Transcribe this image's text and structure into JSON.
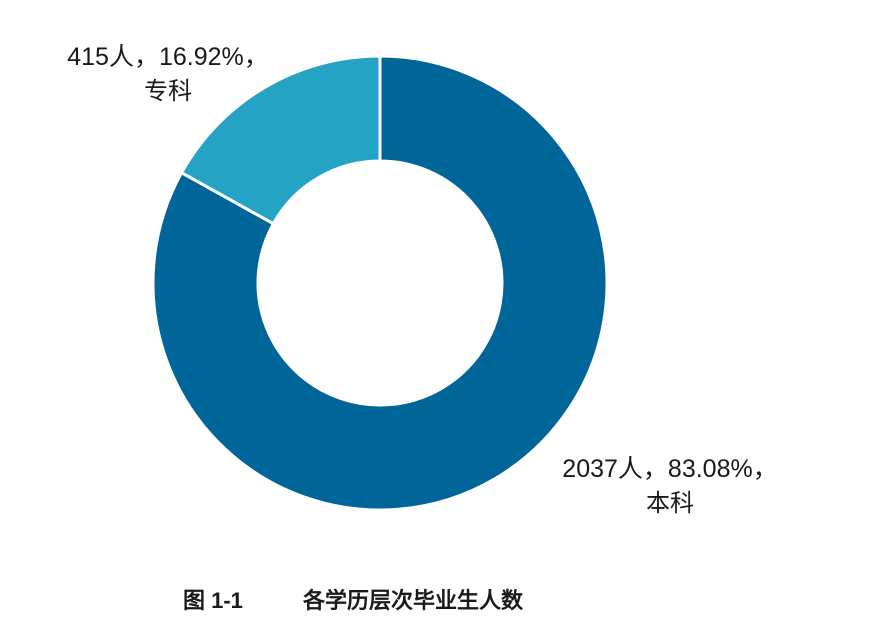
{
  "chart_data": {
    "type": "pie",
    "variant": "donut",
    "title": "图 1-1 各学历层次毕业生人数",
    "categories": [
      "本科",
      "专科"
    ],
    "values": [
      2037,
      415
    ],
    "percentages": [
      83.08,
      16.92
    ],
    "colors": [
      "#006699",
      "#24A3C4"
    ],
    "start_angle": "12 o'clock",
    "direction": "clockwise",
    "data_labels": [
      "2037人，83.08%，本科",
      "415人，16.92%，专科"
    ],
    "legend": "none"
  },
  "slices": [
    {
      "value_text": "2037人，83.08%，",
      "category": "本科"
    },
    {
      "value_text": "415人，16.92%，",
      "category": "专科"
    }
  ],
  "caption": {
    "number": "图 1-1",
    "text": "各学历层次毕业生人数"
  }
}
